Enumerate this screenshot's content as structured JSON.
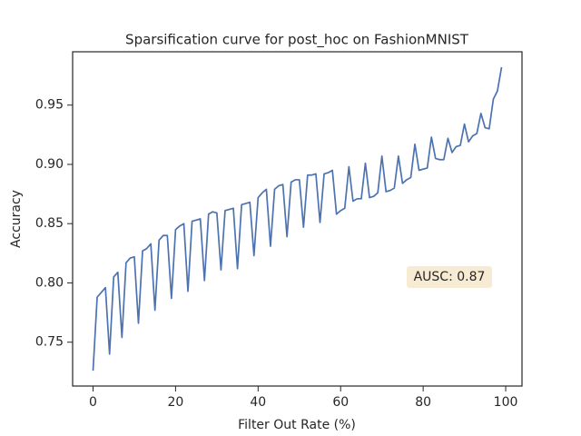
{
  "chart_data": {
    "type": "line",
    "title": "Sparsification curve for post_hoc on FashionMNIST",
    "x_label": "Filter Out Rate (%)",
    "y_label": "Accuracy",
    "annotation": "AUSC: 0.87",
    "x": [
      0,
      1,
      2,
      3,
      4,
      5,
      6,
      7,
      8,
      9,
      10,
      11,
      12,
      13,
      14,
      15,
      16,
      17,
      18,
      19,
      20,
      21,
      22,
      23,
      24,
      25,
      26,
      27,
      28,
      29,
      30,
      31,
      32,
      33,
      34,
      35,
      36,
      37,
      38,
      39,
      40,
      41,
      42,
      43,
      44,
      45,
      46,
      47,
      48,
      49,
      50,
      51,
      52,
      53,
      54,
      55,
      56,
      57,
      58,
      59,
      60,
      61,
      62,
      63,
      64,
      65,
      66,
      67,
      68,
      69,
      70,
      71,
      72,
      73,
      74,
      75,
      76,
      77,
      78,
      79,
      80,
      81,
      82,
      83,
      84,
      85,
      86,
      87,
      88,
      89,
      90,
      91,
      92,
      93,
      94,
      95,
      96,
      97,
      98,
      99
    ],
    "series": [
      {
        "name": "post_hoc",
        "color": "#4c72b0",
        "values": [
          0.726,
          0.788,
          0.792,
          0.796,
          0.74,
          0.805,
          0.809,
          0.754,
          0.817,
          0.821,
          0.822,
          0.766,
          0.827,
          0.829,
          0.833,
          0.777,
          0.836,
          0.84,
          0.84,
          0.787,
          0.845,
          0.848,
          0.85,
          0.793,
          0.852,
          0.853,
          0.854,
          0.802,
          0.858,
          0.86,
          0.859,
          0.811,
          0.861,
          0.862,
          0.863,
          0.812,
          0.866,
          0.867,
          0.868,
          0.823,
          0.872,
          0.876,
          0.879,
          0.831,
          0.879,
          0.882,
          0.883,
          0.839,
          0.885,
          0.887,
          0.887,
          0.847,
          0.891,
          0.891,
          0.892,
          0.851,
          0.892,
          0.893,
          0.895,
          0.858,
          0.861,
          0.863,
          0.898,
          0.869,
          0.871,
          0.871,
          0.901,
          0.872,
          0.873,
          0.876,
          0.907,
          0.877,
          0.878,
          0.88,
          0.907,
          0.884,
          0.887,
          0.889,
          0.917,
          0.895,
          0.896,
          0.897,
          0.923,
          0.905,
          0.904,
          0.904,
          0.922,
          0.91,
          0.915,
          0.916,
          0.934,
          0.919,
          0.924,
          0.926,
          0.943,
          0.931,
          0.93,
          0.955,
          0.962,
          0.982
        ]
      }
    ],
    "xlim": [
      -4.95,
      103.95
    ],
    "ylim": [
      0.713,
      0.995
    ],
    "xticks": [
      0,
      20,
      40,
      60,
      80,
      100
    ],
    "yticks": [
      0.75,
      {
        "value": 0.8,
        "label": "0.80"
      },
      0.85,
      {
        "value": 0.9,
        "label": "0.90"
      },
      0.95
    ],
    "grid": false
  }
}
